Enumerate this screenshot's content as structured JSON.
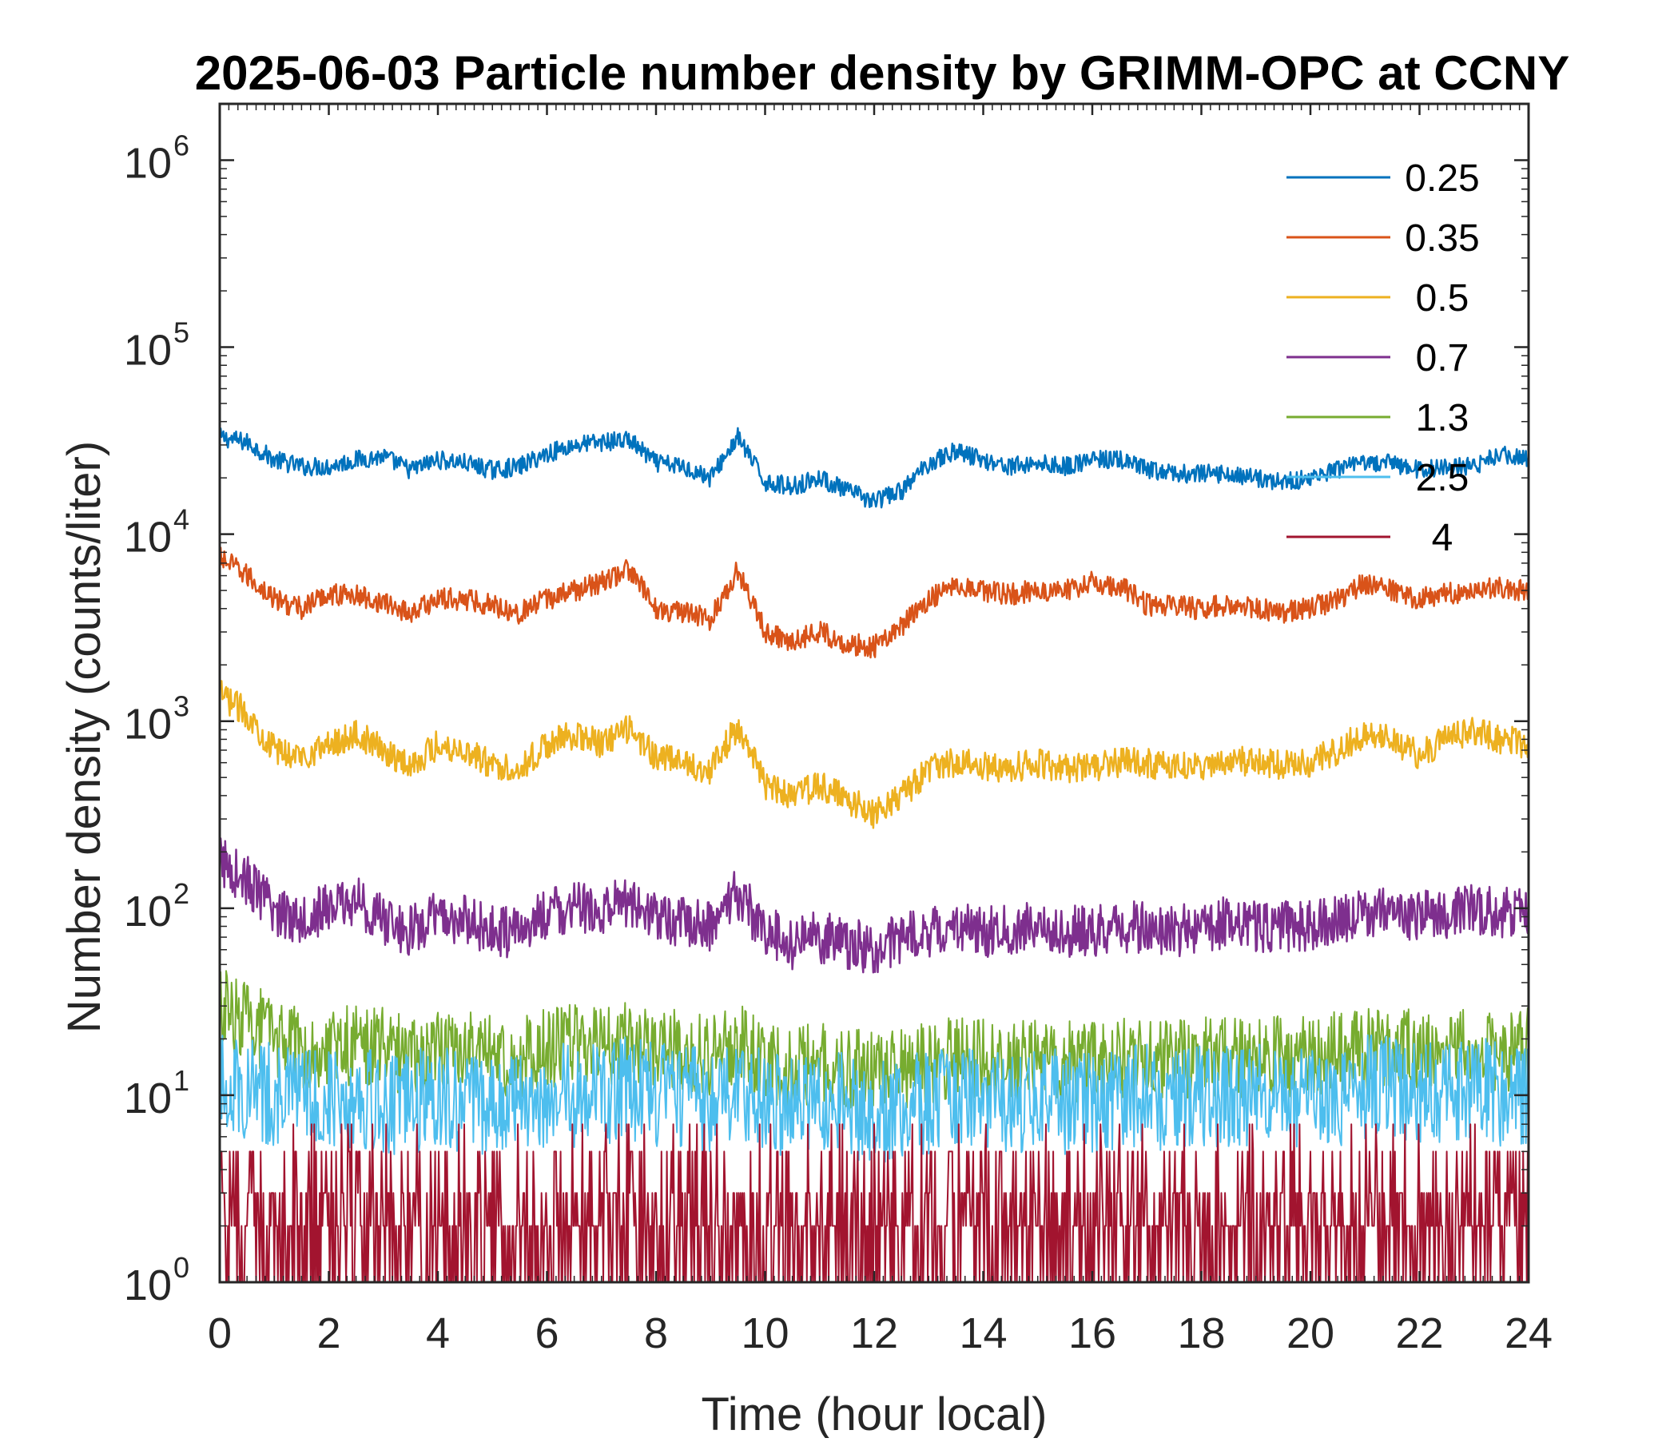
{
  "chart_data": {
    "type": "line",
    "title": "2025-06-03 Particle number density by GRIMM-OPC at CCNY",
    "xlabel": "Time (hour local)",
    "ylabel": "Number density (counts/liter)",
    "xlim": [
      0,
      24
    ],
    "ylim": [
      1,
      2000000
    ],
    "yscale": "log",
    "grid": false,
    "legend_position": "top-right",
    "x_ticks": [
      0,
      2,
      4,
      6,
      8,
      10,
      12,
      14,
      16,
      18,
      20,
      22,
      24
    ],
    "x_tick_labels": [
      "0",
      "2",
      "4",
      "6",
      "8",
      "10",
      "12",
      "14",
      "16",
      "18",
      "20",
      "22",
      "24"
    ],
    "y_ticks": [
      {
        "value": 1,
        "base": "10",
        "exp": "0"
      },
      {
        "value": 10,
        "base": "10",
        "exp": "1"
      },
      {
        "value": 100,
        "base": "10",
        "exp": "2"
      },
      {
        "value": 1000,
        "base": "10",
        "exp": "3"
      },
      {
        "value": 10000,
        "base": "10",
        "exp": "4"
      },
      {
        "value": 100000,
        "base": "10",
        "exp": "5"
      },
      {
        "value": 1000000,
        "base": "10",
        "exp": "6"
      }
    ],
    "x": [
      0,
      0.5,
      1,
      1.5,
      2,
      2.5,
      3,
      3.5,
      4,
      4.5,
      5,
      5.5,
      6,
      6.5,
      7,
      7.5,
      8,
      8.5,
      9,
      9.5,
      10,
      10.5,
      11,
      11.5,
      12,
      12.5,
      13,
      13.5,
      14,
      14.5,
      15,
      15.5,
      16,
      16.5,
      17,
      17.5,
      18,
      18.5,
      19,
      19.5,
      20,
      20.5,
      21,
      21.5,
      22,
      22.5,
      23,
      23.5,
      24
    ],
    "series": [
      {
        "name": "0.25",
        "color": "#0072BD",
        "values": [
          33000,
          31000,
          25000,
          23000,
          23000,
          25000,
          26000,
          22000,
          25000,
          24000,
          22000,
          23000,
          27000,
          30000,
          31000,
          32000,
          24000,
          23000,
          20000,
          33000,
          19000,
          18000,
          20000,
          17000,
          15000,
          17000,
          24000,
          28000,
          25000,
          23000,
          24000,
          23000,
          25000,
          25000,
          22000,
          21000,
          21000,
          21000,
          20000,
          19000,
          20000,
          22000,
          24000,
          24000,
          22000,
          23000,
          23000,
          27000,
          25000
        ]
      },
      {
        "name": "0.35",
        "color": "#D95319",
        "values": [
          7500,
          6000,
          4500,
          4000,
          4800,
          4700,
          4300,
          3800,
          4500,
          4500,
          4200,
          3800,
          4500,
          5000,
          5500,
          6500,
          4000,
          3800,
          3500,
          6500,
          3000,
          2700,
          3000,
          2600,
          2500,
          3200,
          4500,
          5500,
          5000,
          4800,
          5000,
          5000,
          5500,
          5300,
          4200,
          4100,
          4000,
          4200,
          4000,
          3800,
          4000,
          4500,
          5500,
          5000,
          4500,
          4800,
          5000,
          5200,
          5000
        ]
      },
      {
        "name": "0.5",
        "color": "#EDB120",
        "values": [
          1400,
          1100,
          700,
          650,
          750,
          850,
          700,
          580,
          750,
          700,
          580,
          560,
          750,
          850,
          750,
          900,
          650,
          600,
          550,
          950,
          450,
          400,
          450,
          380,
          320,
          400,
          550,
          600,
          580,
          560,
          600,
          560,
          560,
          600,
          600,
          560,
          580,
          600,
          620,
          580,
          600,
          700,
          850,
          800,
          650,
          800,
          900,
          800,
          750
        ]
      },
      {
        "name": "0.7",
        "color": "#7E2F8E",
        "values": [
          180,
          140,
          95,
          90,
          100,
          110,
          85,
          75,
          90,
          85,
          75,
          75,
          95,
          100,
          95,
          110,
          90,
          85,
          80,
          120,
          75,
          65,
          70,
          65,
          60,
          70,
          75,
          80,
          75,
          75,
          80,
          75,
          75,
          78,
          80,
          75,
          80,
          85,
          80,
          80,
          80,
          85,
          95,
          95,
          90,
          95,
          100,
          95,
          100
        ]
      },
      {
        "name": "1.3",
        "color": "#77AC30",
        "values": [
          30,
          25,
          20,
          18,
          18,
          19,
          18,
          16,
          18,
          17,
          16,
          16,
          18,
          19,
          18,
          20,
          18,
          17,
          16,
          19,
          15,
          14,
          15,
          14,
          13,
          14,
          15,
          16,
          16,
          15,
          16,
          15,
          15,
          16,
          16,
          15,
          16,
          16,
          16,
          16,
          16,
          17,
          18,
          18,
          17,
          18,
          18,
          17,
          18
        ]
      },
      {
        "name": "2.5",
        "color": "#4DBEEE",
        "values": [
          12,
          11,
          10,
          10,
          10,
          10,
          9,
          9,
          10,
          9,
          9,
          9,
          10,
          10,
          10,
          11,
          10,
          10,
          9,
          11,
          9,
          9,
          9,
          9,
          8,
          9,
          9,
          10,
          10,
          9,
          10,
          9,
          9,
          10,
          10,
          9,
          10,
          10,
          10,
          10,
          10,
          10,
          11,
          11,
          10,
          10,
          11,
          10,
          10
        ]
      },
      {
        "name": "4",
        "color": "#A2142F",
        "values": [
          2,
          2,
          2,
          1.5,
          1.5,
          1.5,
          1.5,
          1.5,
          1.5,
          1.5,
          1.5,
          1.5,
          1.5,
          2,
          2,
          2,
          2,
          2,
          1.5,
          2,
          2,
          1.5,
          2,
          1.5,
          1.5,
          2,
          2,
          2,
          2,
          2,
          2,
          2,
          2,
          2,
          2,
          2,
          2,
          2,
          2,
          2,
          2,
          2,
          2,
          2,
          2,
          2,
          2,
          2,
          2
        ]
      }
    ]
  }
}
